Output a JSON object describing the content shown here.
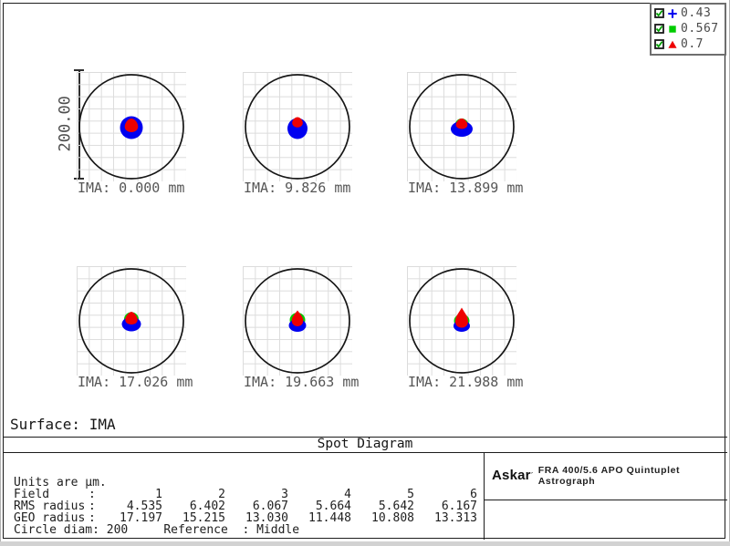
{
  "title": "Spot Diagram",
  "surface_label": "Surface: IMA",
  "scale_bar": {
    "label": "200.00"
  },
  "legend": {
    "entries": [
      {
        "marker": "plus",
        "color": "#0000f0",
        "label": "0.43",
        "checked": true
      },
      {
        "marker": "square",
        "color": "#00cc00",
        "label": "0.567",
        "checked": true
      },
      {
        "marker": "triangle",
        "color": "#ee0000",
        "label": "0.7",
        "checked": true
      }
    ]
  },
  "panels": [
    {
      "ima": "IMA: 0.000 mm",
      "spot_profile": "blue-disk-red-core"
    },
    {
      "ima": "IMA: 9.826 mm",
      "spot_profile": "blue-disk-red-top"
    },
    {
      "ima": "IMA: 13.899 mm",
      "spot_profile": "blue-ellipse-red-green-fringe"
    },
    {
      "ima": "IMA: 17.026 mm",
      "spot_profile": "red-blob-green-fringe-blue-crescent"
    },
    {
      "ima": "IMA: 19.663 mm",
      "spot_profile": "red-teardrop-green-fringe-blue-crescent"
    },
    {
      "ima": "IMA: 21.988 mm",
      "spot_profile": "red-tall-teardrop-green-fringe-blue-crescent"
    }
  ],
  "table": {
    "units_line": "Units are µm.",
    "colon": ":",
    "field_label": "Field",
    "rms_label": "RMS radius",
    "geo_label": "GEO radius",
    "fields": [
      "1",
      "2",
      "3",
      "4",
      "5",
      "6"
    ],
    "rms": [
      "4.535",
      "6.402",
      "6.067",
      "5.664",
      "5.642",
      "6.167"
    ],
    "geo": [
      "17.197",
      "15.215",
      "13.030",
      "11.448",
      "10.808",
      "13.313"
    ],
    "footer_line": "Circle diam: 200     Reference  : Middle"
  },
  "branding": {
    "brand": "Askar",
    "mark": "´",
    "model": "FRA 400/5.6 APO Quintuplet Astrograph"
  },
  "chart_data": {
    "type": "scatter",
    "title": "Spot Diagram",
    "surface": "IMA",
    "units": "µm",
    "wavelengths_um": [
      0.43,
      0.567,
      0.7
    ],
    "wavelength_colors": [
      "#0000f0",
      "#00cc00",
      "#ee0000"
    ],
    "circle_diam_um": 200,
    "scale_bar_um": 200,
    "reference": "Middle",
    "grid": true,
    "layout": "2 rows x 3 columns of field spot panels",
    "legend_position": "top-right",
    "fields": [
      {
        "field": 1,
        "ima_mm": 0.0,
        "rms_radius_um": 4.535,
        "geo_radius_um": 17.197
      },
      {
        "field": 2,
        "ima_mm": 9.826,
        "rms_radius_um": 6.402,
        "geo_radius_um": 15.215
      },
      {
        "field": 3,
        "ima_mm": 13.899,
        "rms_radius_um": 6.067,
        "geo_radius_um": 13.03
      },
      {
        "field": 4,
        "ima_mm": 17.026,
        "rms_radius_um": 5.664,
        "geo_radius_um": 11.448
      },
      {
        "field": 5,
        "ima_mm": 19.663,
        "rms_radius_um": 5.642,
        "geo_radius_um": 10.808
      },
      {
        "field": 6,
        "ima_mm": 21.988,
        "rms_radius_um": 6.167,
        "geo_radius_um": 13.313
      }
    ]
  }
}
